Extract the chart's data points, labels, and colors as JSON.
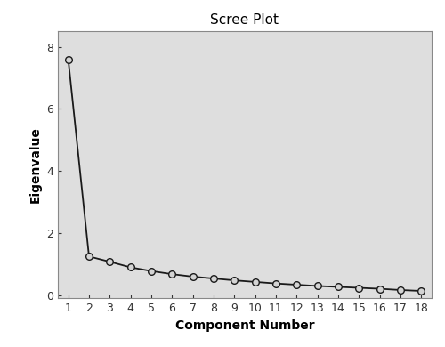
{
  "title": "Scree Plot",
  "xlabel": "Component Number",
  "ylabel": "Eigenvalue",
  "x": [
    1,
    2,
    3,
    4,
    5,
    6,
    7,
    8,
    9,
    10,
    11,
    12,
    13,
    14,
    15,
    16,
    17,
    18
  ],
  "y": [
    7.6,
    1.25,
    1.08,
    0.9,
    0.78,
    0.68,
    0.6,
    0.54,
    0.48,
    0.43,
    0.38,
    0.34,
    0.3,
    0.27,
    0.24,
    0.21,
    0.17,
    0.14
  ],
  "xlim": [
    0.5,
    18.5
  ],
  "ylim": [
    -0.1,
    8.5
  ],
  "yticks": [
    0,
    2,
    4,
    6,
    8
  ],
  "xticks": [
    1,
    2,
    3,
    4,
    5,
    6,
    7,
    8,
    9,
    10,
    11,
    12,
    13,
    14,
    15,
    16,
    17,
    18
  ],
  "line_color": "#1a1a1a",
  "marker_facecolor": "#d4d4d4",
  "marker_edgecolor": "#1a1a1a",
  "plot_bg_color": "#dedede",
  "fig_bg_color": "#ffffff",
  "spine_color": "#888888",
  "title_fontsize": 11,
  "label_fontsize": 10,
  "tick_fontsize": 9
}
